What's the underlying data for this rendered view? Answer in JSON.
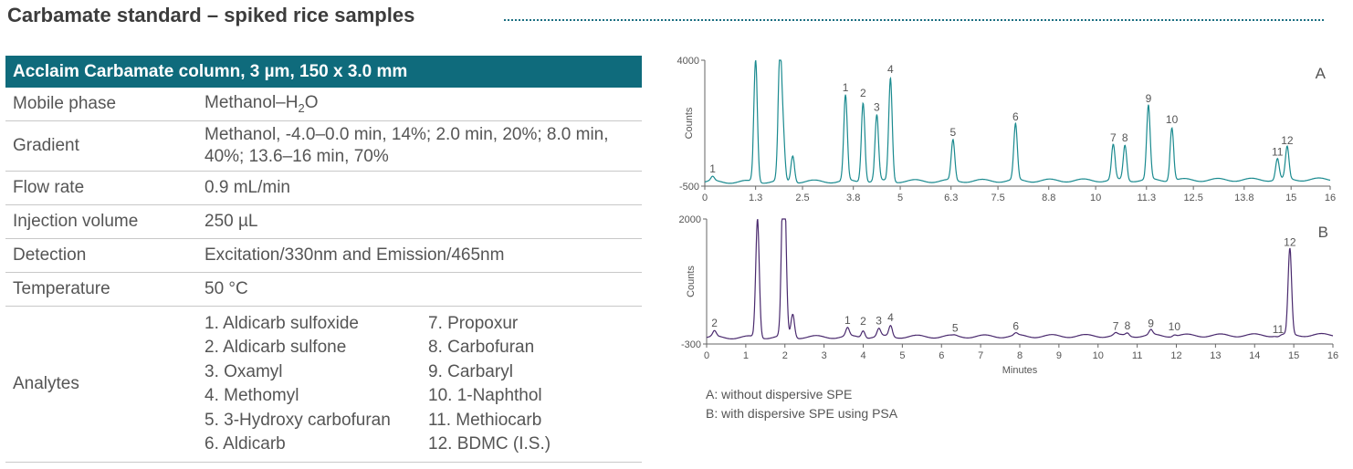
{
  "page": {
    "title": "Carbamate standard – spiked rice samples"
  },
  "table": {
    "header": "Acclaim Carbamate column, 3 µm, 150 x 3.0 mm",
    "rows": [
      {
        "label": "Mobile phase",
        "value": "Methanol–H2O"
      },
      {
        "label": "Gradient",
        "value": "Methanol, -4.0–0.0 min, 14%; 2.0 min, 20%; 8.0 min, 40%; 13.6–16 min, 70%"
      },
      {
        "label": "Flow rate",
        "value": "0.9 mL/min"
      },
      {
        "label": "Injection volume",
        "value": "250 µL"
      },
      {
        "label": "Detection",
        "value": "Excitation/330nm and Emission/465nm"
      },
      {
        "label": "Temperature",
        "value": "50 °C"
      },
      {
        "label": "Analytes",
        "value": ""
      }
    ],
    "analytes": [
      "1. Aldicarb sulfoxide",
      "7. Propoxur",
      "2. Aldicarb sulfone",
      "8. Carbofuran",
      "3. Oxamyl",
      "9. Carbaryl",
      "4. Methomyl",
      "10. 1-Naphthol",
      "5. 3-Hydroxy carbofuran",
      "11. Methiocarb",
      "6. Aldicarb",
      "12. BDMC (I.S.)"
    ]
  },
  "chart_data": [
    {
      "type": "line",
      "panel": "A",
      "ylabel": "Counts",
      "xlabel": "",
      "ylim": [
        -500,
        4000
      ],
      "xlim": [
        0,
        16
      ],
      "y_ticks": [
        "4000",
        "-500"
      ],
      "x_ticks": [
        "0",
        "1.3",
        "2.5",
        "3.8",
        "5",
        "6.3",
        "7.5",
        "8.8",
        "10",
        "11.3",
        "12.5",
        "13.8",
        "15",
        "16"
      ],
      "color": "#1a8a8f",
      "baseline": -350,
      "peaks": [
        {
          "label": "1",
          "x": 0.2,
          "y": -200
        },
        {
          "label": "",
          "x": 1.3,
          "y": 4000
        },
        {
          "label": "",
          "x": 1.92,
          "y": 4000
        },
        {
          "label": "",
          "x": 2.0,
          "y": 1300
        },
        {
          "label": "",
          "x": 2.25,
          "y": 600
        },
        {
          "label": "1",
          "x": 3.6,
          "y": 2700
        },
        {
          "label": "2",
          "x": 4.05,
          "y": 2500
        },
        {
          "label": "3",
          "x": 4.4,
          "y": 2000
        },
        {
          "label": "4",
          "x": 4.75,
          "y": 3350
        },
        {
          "label": "5",
          "x": 6.35,
          "y": 1100
        },
        {
          "label": "6",
          "x": 7.95,
          "y": 1650
        },
        {
          "label": "7",
          "x": 10.45,
          "y": 900
        },
        {
          "label": "8",
          "x": 10.75,
          "y": 900
        },
        {
          "label": "9",
          "x": 11.35,
          "y": 2300
        },
        {
          "label": "10",
          "x": 11.95,
          "y": 1550
        },
        {
          "label": "11",
          "x": 14.65,
          "y": 400
        },
        {
          "label": "12",
          "x": 14.9,
          "y": 800
        }
      ]
    },
    {
      "type": "line",
      "panel": "B",
      "ylabel": "Counts",
      "xlabel": "Minutes",
      "ylim": [
        -300,
        2000
      ],
      "xlim": [
        0,
        16
      ],
      "y_ticks": [
        "2000",
        "-300"
      ],
      "x_ticks": [
        "0",
        "1",
        "2",
        "3",
        "4",
        "5",
        "6",
        "7",
        "8",
        "9",
        "10",
        "11",
        "12",
        "13",
        "14",
        "15",
        "16"
      ],
      "color": "#4a2a6e",
      "baseline": -180,
      "peaks": [
        {
          "label": "2",
          "x": 0.2,
          "y": -80
        },
        {
          "label": "",
          "x": 1.3,
          "y": 2000
        },
        {
          "label": "",
          "x": 1.95,
          "y": 2000
        },
        {
          "label": "",
          "x": 2.0,
          "y": 1550
        },
        {
          "label": "",
          "x": 2.2,
          "y": 250
        },
        {
          "label": "1",
          "x": 3.6,
          "y": -30
        },
        {
          "label": "2",
          "x": 4.0,
          "y": -50
        },
        {
          "label": "3",
          "x": 4.4,
          "y": -40
        },
        {
          "label": "4",
          "x": 4.7,
          "y": 20
        },
        {
          "label": "5",
          "x": 6.35,
          "y": -170
        },
        {
          "label": "6",
          "x": 7.9,
          "y": -140
        },
        {
          "label": "7",
          "x": 10.45,
          "y": -140
        },
        {
          "label": "8",
          "x": 10.75,
          "y": -130
        },
        {
          "label": "9",
          "x": 11.35,
          "y": -90
        },
        {
          "label": "10",
          "x": 11.95,
          "y": -150
        },
        {
          "label": "11",
          "x": 14.6,
          "y": -200
        },
        {
          "label": "12",
          "x": 14.9,
          "y": 1400
        }
      ]
    }
  ],
  "captions": {
    "a": "A: without dispersive SPE",
    "b": "B: with dispersive SPE using PSA"
  }
}
